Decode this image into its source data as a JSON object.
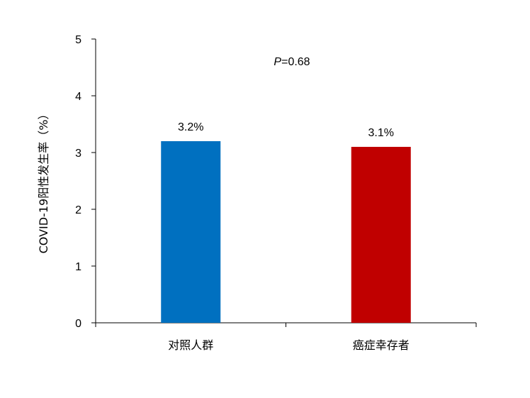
{
  "chart_data": {
    "type": "bar",
    "categories": [
      "对照人群",
      "癌症幸存者"
    ],
    "values": [
      3.2,
      3.1
    ],
    "data_labels": [
      "3.2%",
      "3.1%"
    ],
    "colors": [
      "#0070c0",
      "#c00000"
    ],
    "ylabel": "COVID-19阳性发生率（%）",
    "ylim": [
      0,
      5
    ],
    "yticks": [
      "0",
      "1",
      "2",
      "3",
      "4",
      "5"
    ],
    "grid": false,
    "annotation": {
      "prefix": "P",
      "text": "=0.68"
    }
  }
}
